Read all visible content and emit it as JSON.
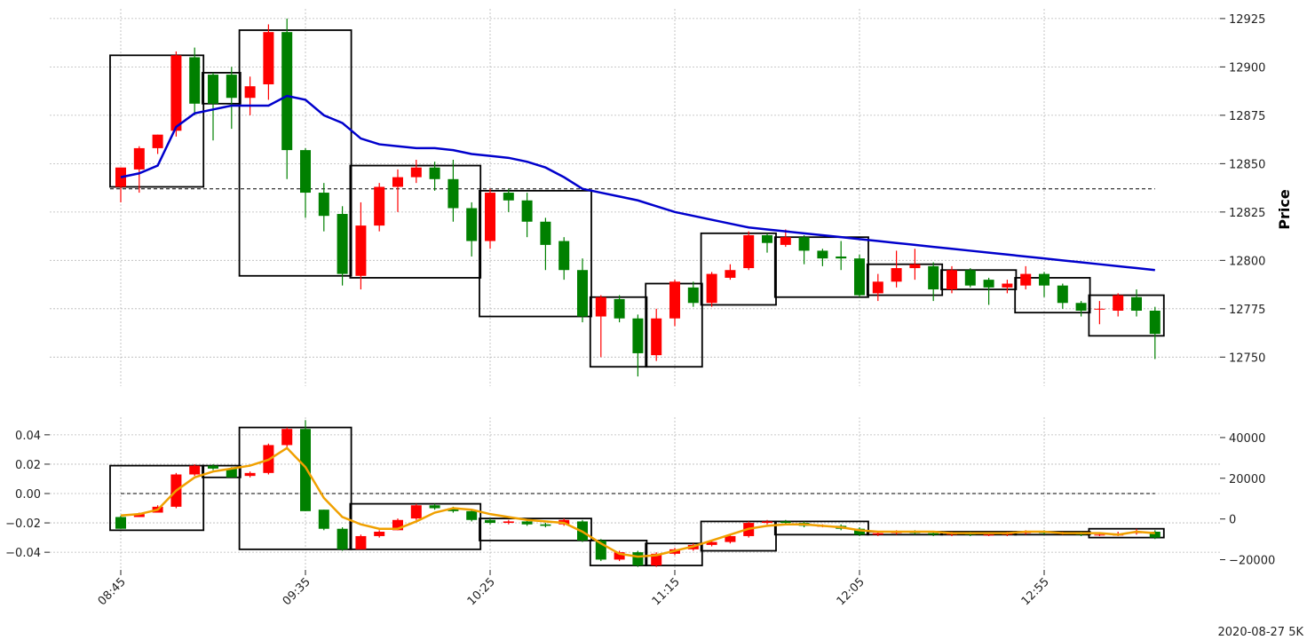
{
  "chart_data": {
    "type": "candlestick",
    "footer": "2020-08-27 5K",
    "x_tick_labels": [
      "08:45",
      "09:35",
      "10:25",
      "11:15",
      "12:05",
      "12:55"
    ],
    "x_tick_index": [
      0,
      10,
      20,
      30,
      40,
      50
    ],
    "colors": {
      "up": "#ff0000",
      "down": "#008000",
      "ma": "#0000cc",
      "osc": "#f0a000",
      "box": "#000000"
    },
    "price_panel": {
      "ylabel": "Price",
      "ylim": [
        12735,
        12930
      ],
      "yticks": [
        12750,
        12775,
        12800,
        12825,
        12850,
        12875,
        12900,
        12925
      ],
      "reference_line": 12837,
      "candles": [
        [
          12838,
          12848,
          12830,
          12848
        ],
        [
          12847,
          12858,
          12835,
          12859
        ],
        [
          12858,
          12865,
          12855,
          12865
        ],
        [
          12867,
          12906,
          12864,
          12908
        ],
        [
          12905,
          12881,
          12875,
          12910
        ],
        [
          12896,
          12881,
          12862,
          12897
        ],
        [
          12896,
          12884,
          12868,
          12900
        ],
        [
          12884,
          12890,
          12875,
          12895
        ],
        [
          12891,
          12918,
          12883,
          12922
        ],
        [
          12918,
          12857,
          12842,
          12925
        ],
        [
          12857,
          12835,
          12822,
          12858
        ],
        [
          12835,
          12823,
          12815,
          12840
        ],
        [
          12824,
          12793,
          12787,
          12828
        ],
        [
          12792,
          12818,
          12785,
          12830
        ],
        [
          12818,
          12838,
          12815,
          12840
        ],
        [
          12838,
          12843,
          12825,
          12847
        ],
        [
          12843,
          12848,
          12840,
          12852
        ],
        [
          12848,
          12842,
          12836,
          12851
        ],
        [
          12842,
          12827,
          12820,
          12852
        ],
        [
          12827,
          12810,
          12802,
          12830
        ],
        [
          12810,
          12835,
          12806,
          12837
        ],
        [
          12835,
          12831,
          12825,
          12837
        ],
        [
          12831,
          12820,
          12812,
          12835
        ],
        [
          12820,
          12808,
          12795,
          12822
        ],
        [
          12810,
          12795,
          12790,
          12812
        ],
        [
          12795,
          12771,
          12768,
          12801
        ],
        [
          12771,
          12781,
          12750,
          12782
        ],
        [
          12780,
          12770,
          12768,
          12782
        ],
        [
          12770,
          12752,
          12740,
          12772
        ],
        [
          12751,
          12770,
          12748,
          12775
        ],
        [
          12770,
          12789,
          12766,
          12790
        ],
        [
          12786,
          12778,
          12776,
          12789
        ],
        [
          12778,
          12793,
          12776,
          12794
        ],
        [
          12791,
          12795,
          12790,
          12798
        ],
        [
          12796,
          12813,
          12795,
          12815
        ],
        [
          12813,
          12809,
          12804,
          12814
        ],
        [
          12808,
          12812,
          12807,
          12816
        ],
        [
          12812,
          12805,
          12798,
          12813
        ],
        [
          12805,
          12801,
          12797,
          12806
        ],
        [
          12802,
          12801,
          12795,
          12810
        ],
        [
          12801,
          12782,
          12781,
          12803
        ],
        [
          12783,
          12789,
          12779,
          12793
        ],
        [
          12789,
          12796,
          12786,
          12805
        ],
        [
          12796,
          12798,
          12790,
          12806
        ],
        [
          12797,
          12785,
          12779,
          12799
        ],
        [
          12785,
          12795,
          12783,
          12797
        ],
        [
          12795,
          12787,
          12786,
          12796
        ],
        [
          12790,
          12786,
          12777,
          12791
        ],
        [
          12786,
          12788,
          12783,
          12790
        ],
        [
          12787,
          12793,
          12785,
          12797
        ],
        [
          12793,
          12787,
          12781,
          12794
        ],
        [
          12787,
          12778,
          12775,
          12788
        ],
        [
          12778,
          12774,
          12771,
          12779
        ],
        [
          12775,
          12775,
          12767,
          12779
        ],
        [
          12774,
          12782,
          12771,
          12783
        ],
        [
          12781,
          12774,
          12771,
          12785
        ],
        [
          12774,
          12762,
          12749,
          12776
        ]
      ],
      "moving_average": [
        12843,
        12845,
        12849,
        12869,
        12876,
        12878,
        12880,
        12880,
        12880,
        12885,
        12883,
        12875,
        12871,
        12863,
        12860,
        12859,
        12858,
        12858,
        12857,
        12855,
        12854,
        12853,
        12851,
        12848,
        12843,
        12837,
        12835,
        12833,
        12831,
        12828,
        12825,
        12823,
        12821,
        12819,
        12817,
        12816,
        12815,
        12814,
        12813,
        12812,
        12811,
        12810,
        12809,
        12808,
        12807,
        12806,
        12805,
        12804,
        12803,
        12802,
        12801,
        12800,
        12799,
        12798,
        12797,
        12796,
        12795
      ],
      "boxes": [
        [
          0,
          4,
          12838,
          12906
        ],
        [
          5,
          6,
          12881,
          12897
        ],
        [
          7,
          12,
          12792,
          12919
        ],
        [
          13,
          19,
          12791,
          12849
        ],
        [
          20,
          25,
          12771,
          12836
        ],
        [
          26,
          28,
          12745,
          12781
        ],
        [
          29,
          31,
          12745,
          12788
        ],
        [
          32,
          35,
          12777,
          12814
        ],
        [
          36,
          40,
          12781,
          12812
        ],
        [
          41,
          44,
          12782,
          12798
        ],
        [
          45,
          48,
          12785,
          12795
        ],
        [
          49,
          52,
          12773,
          12791
        ],
        [
          53,
          56,
          12761,
          12782
        ]
      ]
    },
    "oscillator_panel": {
      "ylim_left": [
        -0.052,
        0.052
      ],
      "yticks_left": [
        -0.04,
        -0.02,
        0.0,
        0.02,
        0.04
      ],
      "ytick_labels_left": [
        "−0.04",
        "−0.02",
        "0.00",
        "0.02",
        "0.04"
      ],
      "ylim_right": [
        -25000,
        50000
      ],
      "yticks_right": [
        -20000,
        0,
        20000,
        40000
      ],
      "ytick_labels_right": [
        "−20000",
        "0",
        "20000",
        "40000"
      ],
      "reference_line": 0.0,
      "bars": [
        [
          -0.016,
          -0.024,
          -0.024,
          -0.015
        ],
        [
          -0.016,
          -0.014,
          -0.016,
          -0.013
        ],
        [
          -0.013,
          -0.009,
          -0.013,
          -0.008
        ],
        [
          -0.009,
          0.013,
          -0.01,
          0.014
        ],
        [
          0.013,
          0.019,
          0.012,
          0.02
        ],
        [
          0.019,
          0.017,
          0.016,
          0.02
        ],
        [
          0.017,
          0.011,
          0.011,
          0.018
        ],
        [
          0.012,
          0.014,
          0.011,
          0.015
        ],
        [
          0.014,
          0.033,
          0.013,
          0.034
        ],
        [
          0.033,
          0.044,
          0.031,
          0.045
        ],
        [
          0.044,
          -0.012,
          -0.012,
          0.05
        ],
        [
          -0.011,
          -0.024,
          -0.025,
          -0.011
        ],
        [
          -0.024,
          -0.038,
          -0.039,
          -0.023
        ],
        [
          -0.038,
          -0.029,
          -0.038,
          -0.028
        ],
        [
          -0.029,
          -0.026,
          -0.03,
          -0.025
        ],
        [
          -0.025,
          -0.018,
          -0.025,
          -0.017
        ],
        [
          -0.017,
          -0.008,
          -0.018,
          -0.007
        ],
        [
          -0.008,
          -0.01,
          -0.011,
          -0.007
        ],
        [
          -0.01,
          -0.012,
          -0.013,
          -0.009
        ],
        [
          -0.012,
          -0.018,
          -0.019,
          -0.011
        ],
        [
          -0.018,
          -0.02,
          -0.021,
          -0.017
        ],
        [
          -0.02,
          -0.019,
          -0.021,
          -0.018
        ],
        [
          -0.019,
          -0.021,
          -0.022,
          -0.018
        ],
        [
          -0.021,
          -0.022,
          -0.023,
          -0.02
        ],
        [
          -0.021,
          -0.018,
          -0.022,
          -0.017
        ],
        [
          -0.019,
          -0.032,
          -0.033,
          -0.018
        ],
        [
          -0.032,
          -0.045,
          -0.046,
          -0.031
        ],
        [
          -0.045,
          -0.04,
          -0.046,
          -0.039
        ],
        [
          -0.04,
          -0.049,
          -0.05,
          -0.039
        ],
        [
          -0.049,
          -0.041,
          -0.05,
          -0.04
        ],
        [
          -0.041,
          -0.038,
          -0.042,
          -0.037
        ],
        [
          -0.038,
          -0.035,
          -0.039,
          -0.034
        ],
        [
          -0.035,
          -0.033,
          -0.036,
          -0.032
        ],
        [
          -0.033,
          -0.029,
          -0.034,
          -0.028
        ],
        [
          -0.029,
          -0.02,
          -0.03,
          -0.019
        ],
        [
          -0.02,
          -0.019,
          -0.021,
          -0.018
        ],
        [
          -0.019,
          -0.02,
          -0.021,
          -0.018
        ],
        [
          -0.02,
          -0.022,
          -0.023,
          -0.019
        ],
        [
          -0.022,
          -0.022,
          -0.023,
          -0.021
        ],
        [
          -0.022,
          -0.024,
          -0.025,
          -0.021
        ],
        [
          -0.024,
          -0.028,
          -0.029,
          -0.023
        ],
        [
          -0.028,
          -0.027,
          -0.029,
          -0.026
        ],
        [
          -0.027,
          -0.026,
          -0.028,
          -0.025
        ],
        [
          -0.026,
          -0.027,
          -0.028,
          -0.025
        ],
        [
          -0.027,
          -0.028,
          -0.029,
          -0.026
        ],
        [
          -0.028,
          -0.027,
          -0.029,
          -0.026
        ],
        [
          -0.027,
          -0.028,
          -0.029,
          -0.026
        ],
        [
          -0.028,
          -0.028,
          -0.029,
          -0.027
        ],
        [
          -0.028,
          -0.027,
          -0.029,
          -0.026
        ],
        [
          -0.027,
          -0.026,
          -0.028,
          -0.025
        ],
        [
          -0.026,
          -0.027,
          -0.028,
          -0.025
        ],
        [
          -0.027,
          -0.027,
          -0.028,
          -0.026
        ],
        [
          -0.027,
          -0.028,
          -0.029,
          -0.026
        ],
        [
          -0.028,
          -0.028,
          -0.029,
          -0.027
        ],
        [
          -0.028,
          -0.028,
          -0.029,
          -0.026
        ],
        [
          -0.027,
          -0.026,
          -0.028,
          -0.024
        ],
        [
          -0.026,
          -0.03,
          -0.031,
          -0.025
        ]
      ],
      "smoothed": [
        -0.015,
        -0.014,
        -0.011,
        0.002,
        0.011,
        0.015,
        0.017,
        0.019,
        0.023,
        0.031,
        0.018,
        -0.003,
        -0.016,
        -0.021,
        -0.024,
        -0.024,
        -0.019,
        -0.013,
        -0.01,
        -0.011,
        -0.014,
        -0.016,
        -0.018,
        -0.019,
        -0.02,
        -0.026,
        -0.034,
        -0.041,
        -0.043,
        -0.042,
        -0.039,
        -0.036,
        -0.032,
        -0.028,
        -0.024,
        -0.022,
        -0.021,
        -0.021,
        -0.022,
        -0.023,
        -0.025,
        -0.026,
        -0.026,
        -0.026,
        -0.026,
        -0.027,
        -0.027,
        -0.027,
        -0.027,
        -0.026,
        -0.026,
        -0.027,
        -0.027,
        -0.027,
        -0.028,
        -0.026,
        -0.027
      ],
      "boxes": [
        [
          0,
          4,
          -0.025,
          0.019
        ],
        [
          5,
          6,
          0.011,
          0.019
        ],
        [
          7,
          12,
          -0.038,
          0.045
        ],
        [
          13,
          19,
          -0.038,
          -0.007
        ],
        [
          20,
          25,
          -0.032,
          -0.017
        ],
        [
          26,
          28,
          -0.049,
          -0.032
        ],
        [
          29,
          31,
          -0.049,
          -0.034
        ],
        [
          32,
          35,
          -0.039,
          -0.019
        ],
        [
          36,
          40,
          -0.028,
          -0.019
        ],
        [
          41,
          44,
          -0.028,
          -0.026
        ],
        [
          45,
          48,
          -0.028,
          -0.026
        ],
        [
          49,
          52,
          -0.028,
          -0.026
        ],
        [
          53,
          56,
          -0.03,
          -0.024
        ]
      ]
    }
  }
}
